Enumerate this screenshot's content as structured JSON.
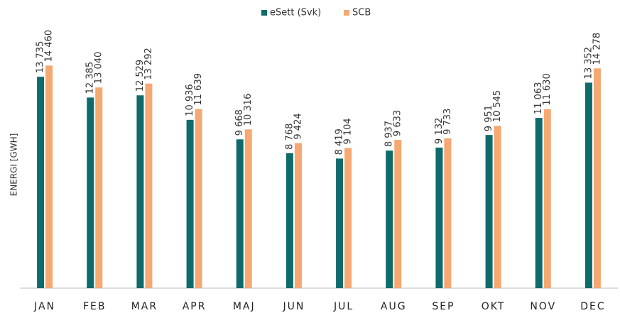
{
  "chart_data": {
    "type": "bar",
    "y_label": "ENERGI [GWH]",
    "categories": [
      "JAN",
      "FEB",
      "MAR",
      "APR",
      "MAJ",
      "JUN",
      "JUL",
      "AUG",
      "SEP",
      "OKT",
      "NOV",
      "DEC"
    ],
    "series": [
      {
        "name": "eSett (Svk)",
        "color": "#0f6b6b",
        "values": [
          13735,
          12385,
          12529,
          10936,
          9668,
          8768,
          8419,
          8937,
          9132,
          9951,
          11063,
          13352
        ],
        "value_labels": [
          "13 735",
          "12 385",
          "12 529",
          "10 936",
          "9 668",
          "8 768",
          "8 419",
          "8 937",
          "9 132",
          "9 951",
          "11 063",
          "13 352"
        ]
      },
      {
        "name": "SCB",
        "color": "#f5a872",
        "values": [
          14460,
          13040,
          13292,
          11639,
          10316,
          9424,
          9104,
          9633,
          9733,
          10545,
          11630,
          14278
        ],
        "value_labels": [
          "14 460",
          "13 040",
          "13 292",
          "11 639",
          "10 316",
          "9 424",
          "9 104",
          "9 633",
          "9 733",
          "10 545",
          "11 630",
          "14 278"
        ]
      }
    ],
    "ylim": [
      0,
      16000
    ],
    "legend": "top"
  }
}
